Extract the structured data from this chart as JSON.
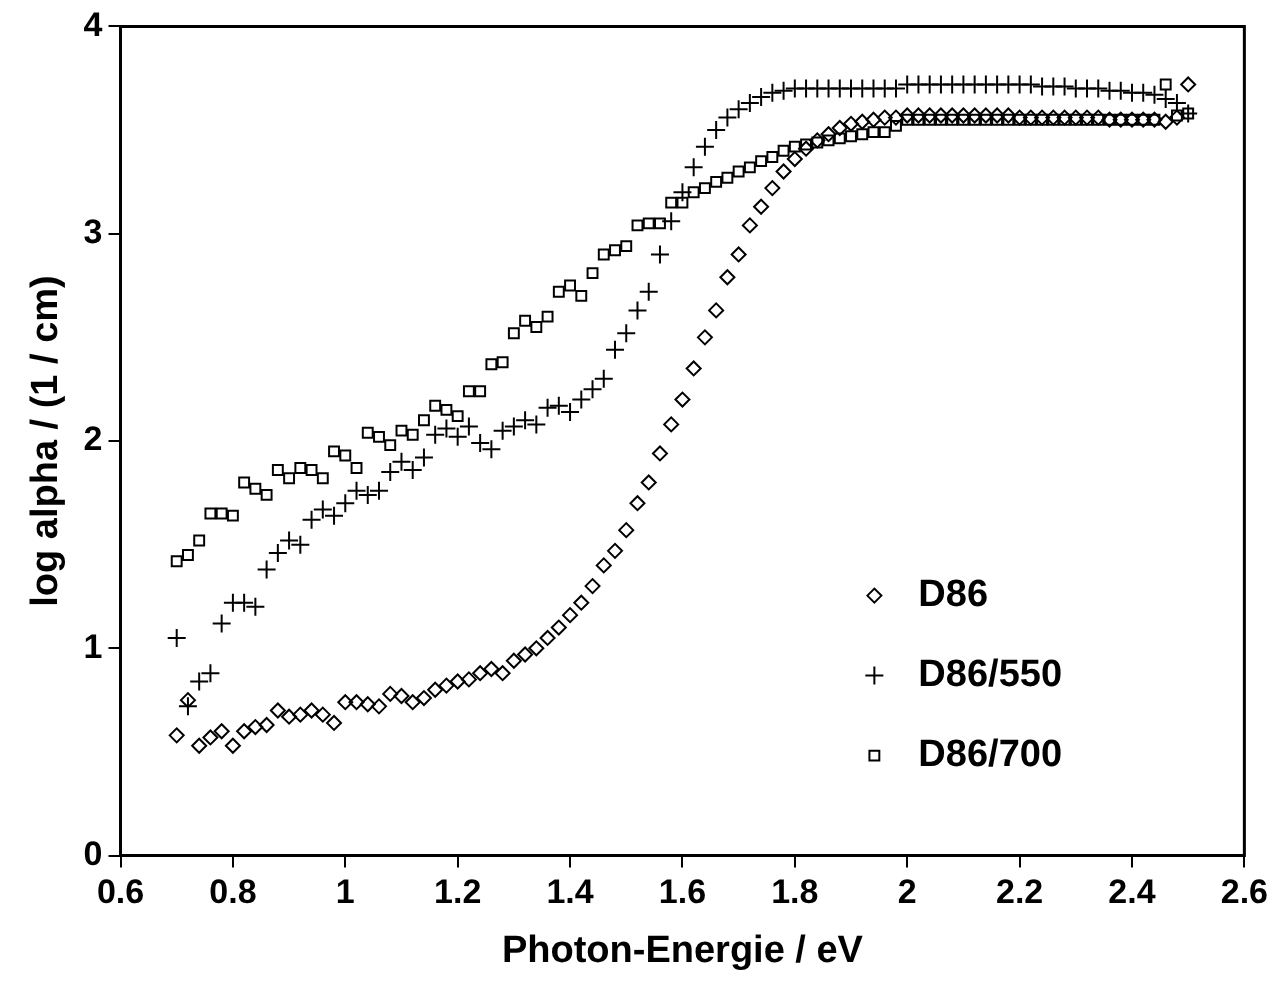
{
  "chart_data": {
    "type": "scatter",
    "xlabel": "Photon-Energie / eV",
    "ylabel": "log alpha / (1 / cm)",
    "x": [
      0.7,
      0.72,
      0.74,
      0.76,
      0.78,
      0.8,
      0.82,
      0.84,
      0.86,
      0.88,
      0.9,
      0.92,
      0.94,
      0.96,
      0.98,
      1.0,
      1.02,
      1.04,
      1.06,
      1.08,
      1.1,
      1.12,
      1.14,
      1.16,
      1.18,
      1.2,
      1.22,
      1.24,
      1.26,
      1.28,
      1.3,
      1.32,
      1.34,
      1.36,
      1.38,
      1.4,
      1.42,
      1.44,
      1.46,
      1.48,
      1.5,
      1.52,
      1.54,
      1.56,
      1.58,
      1.6,
      1.62,
      1.64,
      1.66,
      1.68,
      1.7,
      1.72,
      1.74,
      1.76,
      1.78,
      1.8,
      1.82,
      1.84,
      1.86,
      1.88,
      1.9,
      1.92,
      1.94,
      1.96,
      1.98,
      2.0,
      2.02,
      2.04,
      2.06,
      2.08,
      2.1,
      2.12,
      2.14,
      2.16,
      2.18,
      2.2,
      2.22,
      2.24,
      2.26,
      2.28,
      2.3,
      2.32,
      2.34,
      2.36,
      2.38,
      2.4,
      2.42,
      2.44,
      2.46,
      2.48,
      2.5
    ],
    "series": [
      {
        "name": "D86",
        "color": "#000000",
        "marker": "diamond",
        "values": [
          0.58,
          0.75,
          0.53,
          0.57,
          0.6,
          0.53,
          0.6,
          0.62,
          0.63,
          0.7,
          0.67,
          0.68,
          0.7,
          0.68,
          0.64,
          0.74,
          0.74,
          0.73,
          0.72,
          0.78,
          0.77,
          0.74,
          0.76,
          0.8,
          0.82,
          0.84,
          0.85,
          0.88,
          0.9,
          0.88,
          0.94,
          0.97,
          1.0,
          1.05,
          1.1,
          1.16,
          1.22,
          1.3,
          1.4,
          1.47,
          1.57,
          1.7,
          1.8,
          1.94,
          2.08,
          2.2,
          2.35,
          2.5,
          2.63,
          2.79,
          2.9,
          3.04,
          3.13,
          3.22,
          3.3,
          3.36,
          3.41,
          3.45,
          3.48,
          3.51,
          3.53,
          3.54,
          3.55,
          3.56,
          3.56,
          3.57,
          3.57,
          3.57,
          3.57,
          3.57,
          3.57,
          3.57,
          3.57,
          3.57,
          3.57,
          3.56,
          3.56,
          3.56,
          3.56,
          3.56,
          3.56,
          3.56,
          3.56,
          3.55,
          3.55,
          3.55,
          3.55,
          3.55,
          3.54,
          3.56,
          3.72
        ]
      },
      {
        "name": "D86/550",
        "color": "#000000",
        "marker": "cross",
        "values": [
          1.05,
          0.72,
          0.84,
          0.88,
          1.12,
          1.22,
          1.22,
          1.2,
          1.38,
          1.46,
          1.52,
          1.5,
          1.62,
          1.67,
          1.64,
          1.7,
          1.76,
          1.74,
          1.76,
          1.85,
          1.9,
          1.86,
          1.92,
          2.03,
          2.06,
          2.02,
          2.07,
          1.99,
          1.96,
          2.05,
          2.07,
          2.1,
          2.08,
          2.16,
          2.17,
          2.14,
          2.2,
          2.25,
          2.3,
          2.44,
          2.52,
          2.63,
          2.72,
          2.9,
          3.06,
          3.2,
          3.32,
          3.42,
          3.5,
          3.56,
          3.6,
          3.63,
          3.66,
          3.68,
          3.69,
          3.7,
          3.7,
          3.7,
          3.7,
          3.7,
          3.7,
          3.7,
          3.7,
          3.7,
          3.7,
          3.72,
          3.72,
          3.72,
          3.72,
          3.72,
          3.72,
          3.72,
          3.72,
          3.72,
          3.72,
          3.72,
          3.72,
          3.71,
          3.71,
          3.71,
          3.7,
          3.7,
          3.7,
          3.69,
          3.69,
          3.68,
          3.68,
          3.67,
          3.65,
          3.63,
          3.58
        ]
      },
      {
        "name": "D86/700",
        "color": "#000000",
        "marker": "square",
        "values": [
          1.42,
          1.45,
          1.52,
          1.65,
          1.65,
          1.64,
          1.8,
          1.77,
          1.74,
          1.86,
          1.82,
          1.87,
          1.86,
          1.82,
          1.95,
          1.93,
          1.87,
          2.04,
          2.02,
          1.98,
          2.05,
          2.03,
          2.1,
          2.17,
          2.15,
          2.12,
          2.24,
          2.24,
          2.37,
          2.38,
          2.52,
          2.58,
          2.55,
          2.6,
          2.72,
          2.75,
          2.7,
          2.81,
          2.9,
          2.92,
          2.94,
          3.04,
          3.05,
          3.05,
          3.15,
          3.15,
          3.2,
          3.22,
          3.25,
          3.27,
          3.3,
          3.32,
          3.35,
          3.37,
          3.4,
          3.42,
          3.43,
          3.44,
          3.45,
          3.46,
          3.47,
          3.48,
          3.49,
          3.49,
          3.52,
          3.55,
          3.55,
          3.55,
          3.55,
          3.55,
          3.55,
          3.55,
          3.55,
          3.55,
          3.55,
          3.55,
          3.55,
          3.55,
          3.55,
          3.55,
          3.55,
          3.55,
          3.55,
          3.55,
          3.55,
          3.55,
          3.55,
          3.55,
          3.72,
          3.57,
          3.58
        ]
      }
    ],
    "xlim": [
      0.6,
      2.6
    ],
    "xticks": [
      0.6,
      0.8,
      1,
      1.2,
      1.4,
      1.6,
      1.8,
      2,
      2.2,
      2.4,
      2.6
    ],
    "ylim": [
      0,
      4
    ],
    "yticks": [
      0,
      1,
      2,
      3,
      4
    ],
    "grid": false,
    "legend": "bottom right"
  }
}
